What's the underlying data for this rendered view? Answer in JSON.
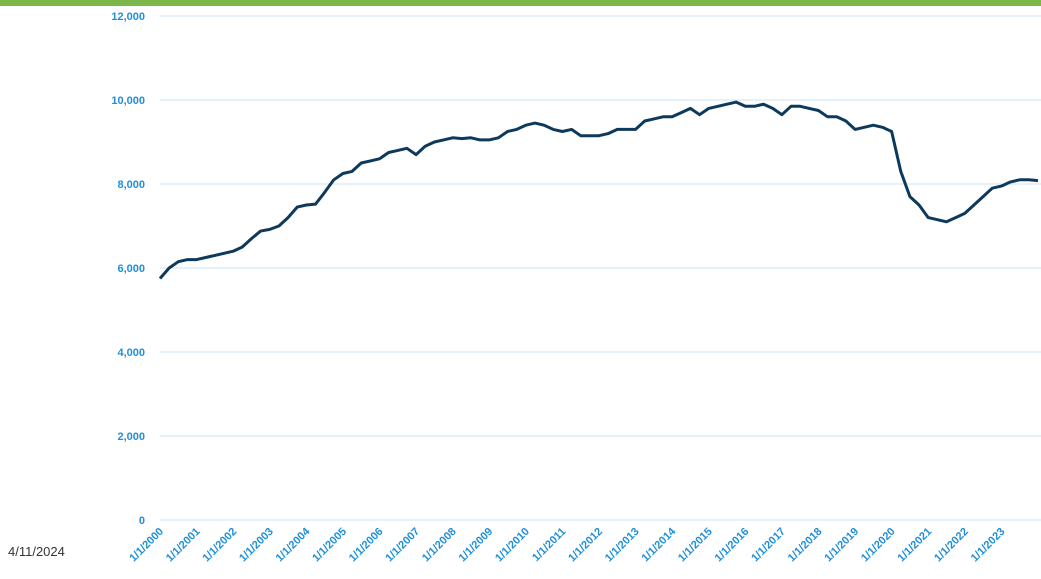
{
  "chart_data": {
    "type": "line",
    "x": [
      "1/1/2000",
      "4/1/2000",
      "7/1/2000",
      "10/1/2000",
      "1/1/2001",
      "4/1/2001",
      "7/1/2001",
      "10/1/2001",
      "1/1/2002",
      "4/1/2002",
      "7/1/2002",
      "10/1/2002",
      "1/1/2003",
      "4/1/2003",
      "7/1/2003",
      "10/1/2003",
      "1/1/2004",
      "4/1/2004",
      "7/1/2004",
      "10/1/2004",
      "1/1/2005",
      "4/1/2005",
      "7/1/2005",
      "10/1/2005",
      "1/1/2006",
      "4/1/2006",
      "7/1/2006",
      "10/1/2006",
      "1/1/2007",
      "4/1/2007",
      "7/1/2007",
      "10/1/2007",
      "1/1/2008",
      "4/1/2008",
      "7/1/2008",
      "10/1/2008",
      "1/1/2009",
      "4/1/2009",
      "7/1/2009",
      "10/1/2009",
      "1/1/2010",
      "4/1/2010",
      "7/1/2010",
      "10/1/2010",
      "1/1/2011",
      "4/1/2011",
      "7/1/2011",
      "10/1/2011",
      "1/1/2012",
      "4/1/2012",
      "7/1/2012",
      "10/1/2012",
      "1/1/2013",
      "4/1/2013",
      "7/1/2013",
      "10/1/2013",
      "1/1/2014",
      "4/1/2014",
      "7/1/2014",
      "10/1/2014",
      "1/1/2015",
      "4/1/2015",
      "7/1/2015",
      "10/1/2015",
      "1/1/2016",
      "4/1/2016",
      "7/1/2016",
      "10/1/2016",
      "1/1/2017",
      "4/1/2017",
      "7/1/2017",
      "10/1/2017",
      "1/1/2018",
      "4/1/2018",
      "7/1/2018",
      "10/1/2018",
      "1/1/2019",
      "4/1/2019",
      "7/1/2019",
      "10/1/2019",
      "1/1/2020",
      "4/1/2020",
      "7/1/2020",
      "10/1/2020",
      "1/1/2021",
      "4/1/2021",
      "7/1/2021",
      "10/1/2021",
      "1/1/2022",
      "4/1/2022",
      "7/1/2022",
      "10/1/2022",
      "1/1/2023",
      "4/1/2023",
      "7/1/2023",
      "10/1/2023",
      "1/1/2024"
    ],
    "series": [
      {
        "color": "#0d3a5c",
        "values": [
          5750,
          6000,
          6150,
          6200,
          6200,
          6250,
          6300,
          6350,
          6400,
          6500,
          6700,
          6880,
          6920,
          7000,
          7200,
          7450,
          7500,
          7520,
          7800,
          8100,
          8250,
          8300,
          8500,
          8550,
          8600,
          8750,
          8800,
          8850,
          8700,
          8900,
          9000,
          9050,
          9100,
          9080,
          9100,
          9050,
          9050,
          9100,
          9250,
          9300,
          9400,
          9450,
          9400,
          9300,
          9250,
          9300,
          9150,
          9150,
          9150,
          9200,
          9300,
          9300,
          9300,
          9500,
          9550,
          9600,
          9600,
          9700,
          9800,
          9650,
          9800,
          9850,
          9900,
          9950,
          9850,
          9850,
          9900,
          9800,
          9650,
          9850,
          9850,
          9800,
          9750,
          9600,
          9600,
          9500,
          9300,
          9350,
          9400,
          9350,
          9250,
          8300,
          7700,
          7500,
          7200,
          7150,
          7100,
          7200,
          7300,
          7500,
          7700,
          7900,
          7950,
          8050,
          8100,
          8100,
          8080
        ]
      }
    ],
    "xlim": [
      "1/1/2000",
      "2/1/2024"
    ],
    "xticks": [
      "1/1/2000",
      "1/1/2001",
      "1/1/2002",
      "1/1/2003",
      "1/1/2004",
      "1/1/2005",
      "1/1/2006",
      "1/1/2007",
      "1/1/2008",
      "1/1/2009",
      "1/1/2010",
      "1/1/2011",
      "1/1/2012",
      "1/1/2013",
      "1/1/2014",
      "1/1/2015",
      "1/1/2016",
      "1/1/2017",
      "1/1/2018",
      "1/1/2019",
      "1/1/2020",
      "1/1/2021",
      "1/1/2022",
      "1/1/2023"
    ],
    "ylim": [
      0,
      12000
    ],
    "yticks": [
      0,
      {
        "value": 2000,
        "label": "2,000"
      },
      {
        "value": 4000,
        "label": "4,000"
      },
      {
        "value": 6000,
        "label": "6,000"
      },
      {
        "value": 8000,
        "label": "8,000"
      },
      {
        "value": 10000,
        "label": "10,000"
      },
      {
        "value": 12000,
        "label": "12,000"
      }
    ],
    "grid": true
  },
  "footer_date": "4/11/2024"
}
